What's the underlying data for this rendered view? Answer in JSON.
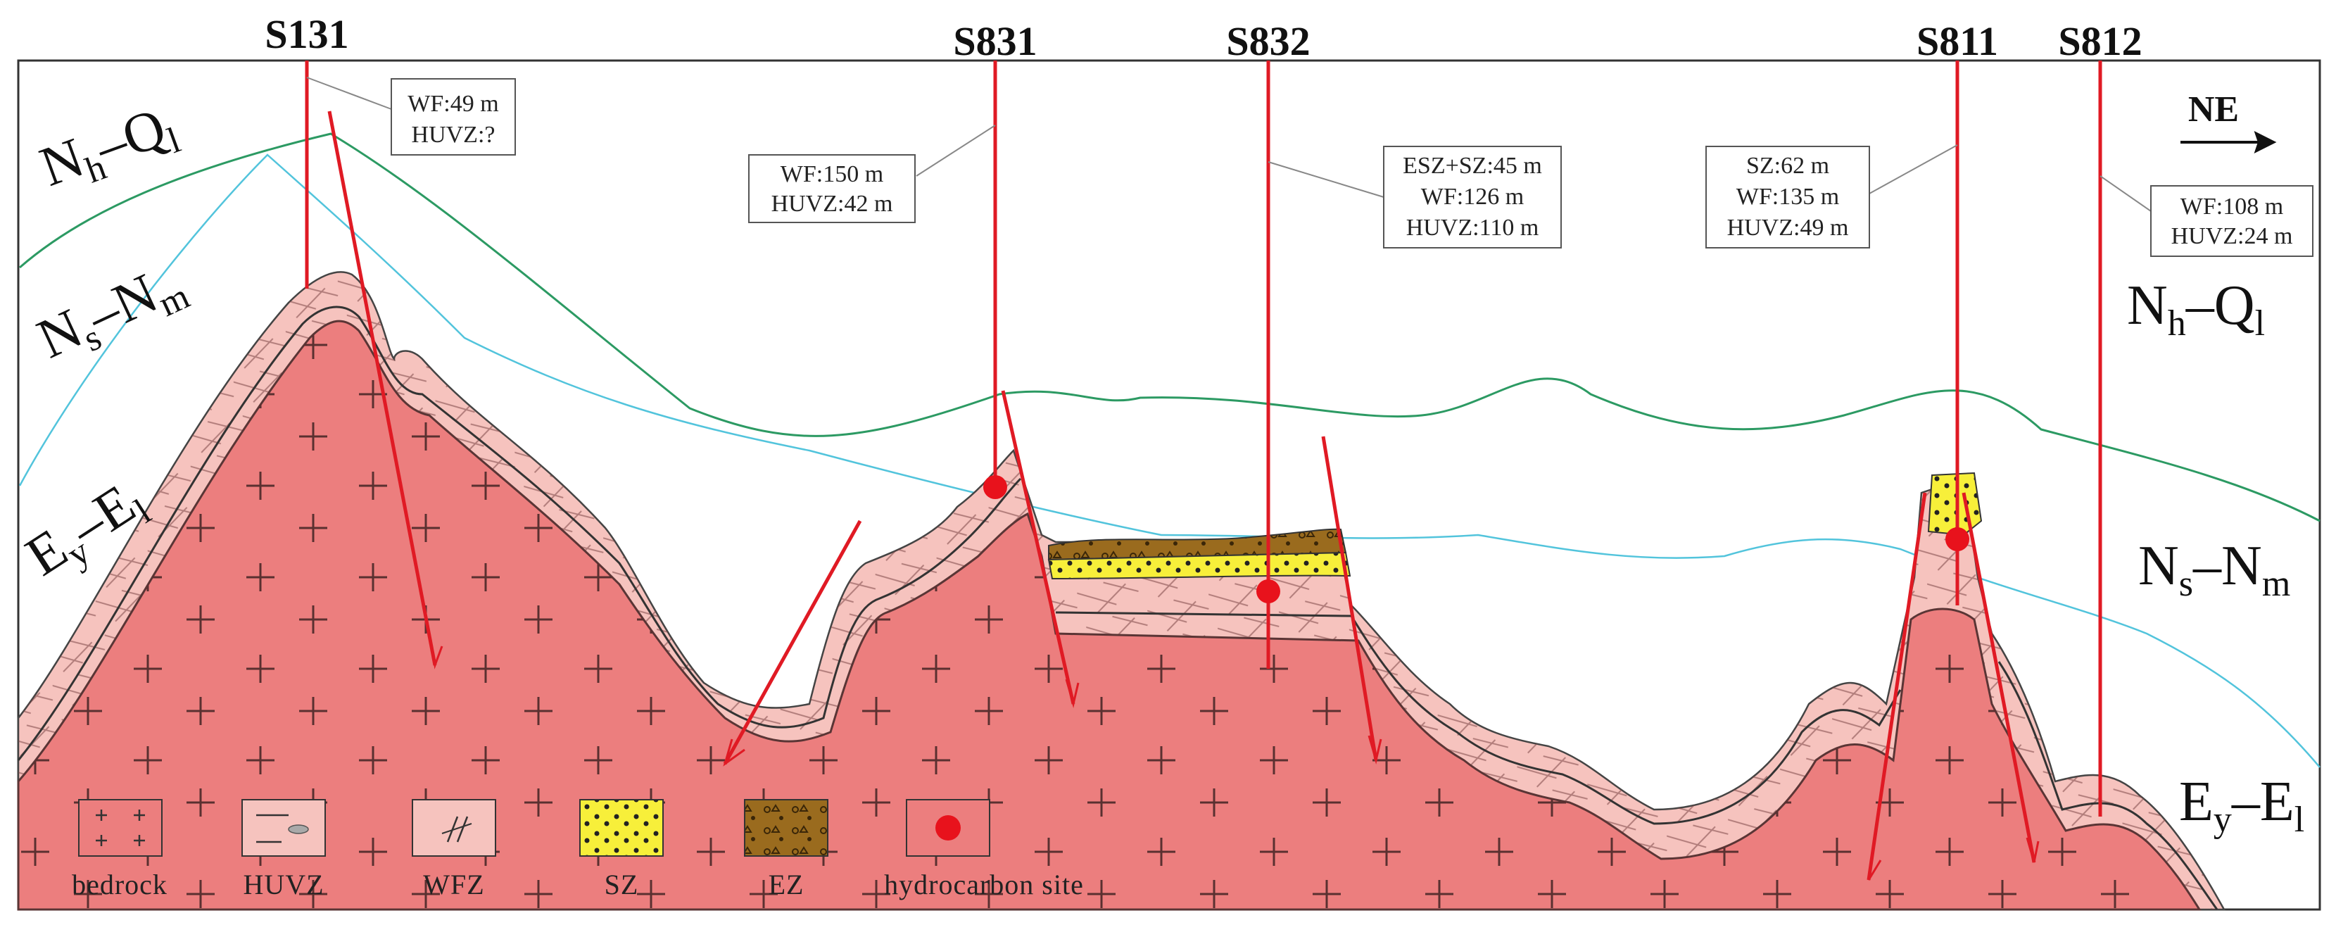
{
  "colors": {
    "bedrock": "#ec7e7e",
    "weathered": "#f6c3be",
    "sand_zone": "#f7ef3a",
    "eluvial_zone": "#9a6b1e",
    "hydrocarbon": "#e8121c",
    "fault": "#e01a24",
    "boundary_green": "#2c9a63",
    "boundary_cyan": "#52c4dc"
  },
  "direction": {
    "label": "NE",
    "icon": "arrow-right-icon"
  },
  "formations": {
    "left_top": {
      "main": "N",
      "sub1": "h",
      "dash": "–Q",
      "sub2": "l"
    },
    "left_mid": {
      "main": "N",
      "sub1": "s",
      "dash": "–N",
      "sub2": "m"
    },
    "left_low": {
      "main": "E",
      "sub1": "y",
      "dash": "–E",
      "sub2": "l"
    },
    "right_top": {
      "main": "N",
      "sub1": "h",
      "dash": "–Q",
      "sub2": "l"
    },
    "right_mid": {
      "main": "N",
      "sub1": "s",
      "dash": "–N",
      "sub2": "m"
    },
    "right_low": {
      "main": "E",
      "sub1": "y",
      "dash": "–E",
      "sub2": "l"
    }
  },
  "wells": [
    {
      "name": "S131",
      "info": [
        "WF:49 m",
        "HUVZ:?"
      ]
    },
    {
      "name": "S831",
      "info": [
        "WF:150 m",
        "HUVZ:42 m"
      ]
    },
    {
      "name": "S832",
      "info": [
        "ESZ+SZ:45 m",
        "WF:126 m",
        "HUVZ:110 m"
      ]
    },
    {
      "name": "S811",
      "info": [
        "SZ:62 m",
        "WF:135 m",
        "HUVZ:49 m"
      ]
    },
    {
      "name": "S812",
      "info": [
        "WF:108 m",
        "HUVZ:24 m"
      ]
    }
  ],
  "legend": [
    {
      "key": "bedrock",
      "label": "bedrock"
    },
    {
      "key": "huvz",
      "label": "HUVZ"
    },
    {
      "key": "wfz",
      "label": "WFZ"
    },
    {
      "key": "sz",
      "label": "SZ"
    },
    {
      "key": "ez",
      "label": "EZ"
    },
    {
      "key": "hydrocarbon",
      "label": "hydrocarbon site"
    }
  ]
}
